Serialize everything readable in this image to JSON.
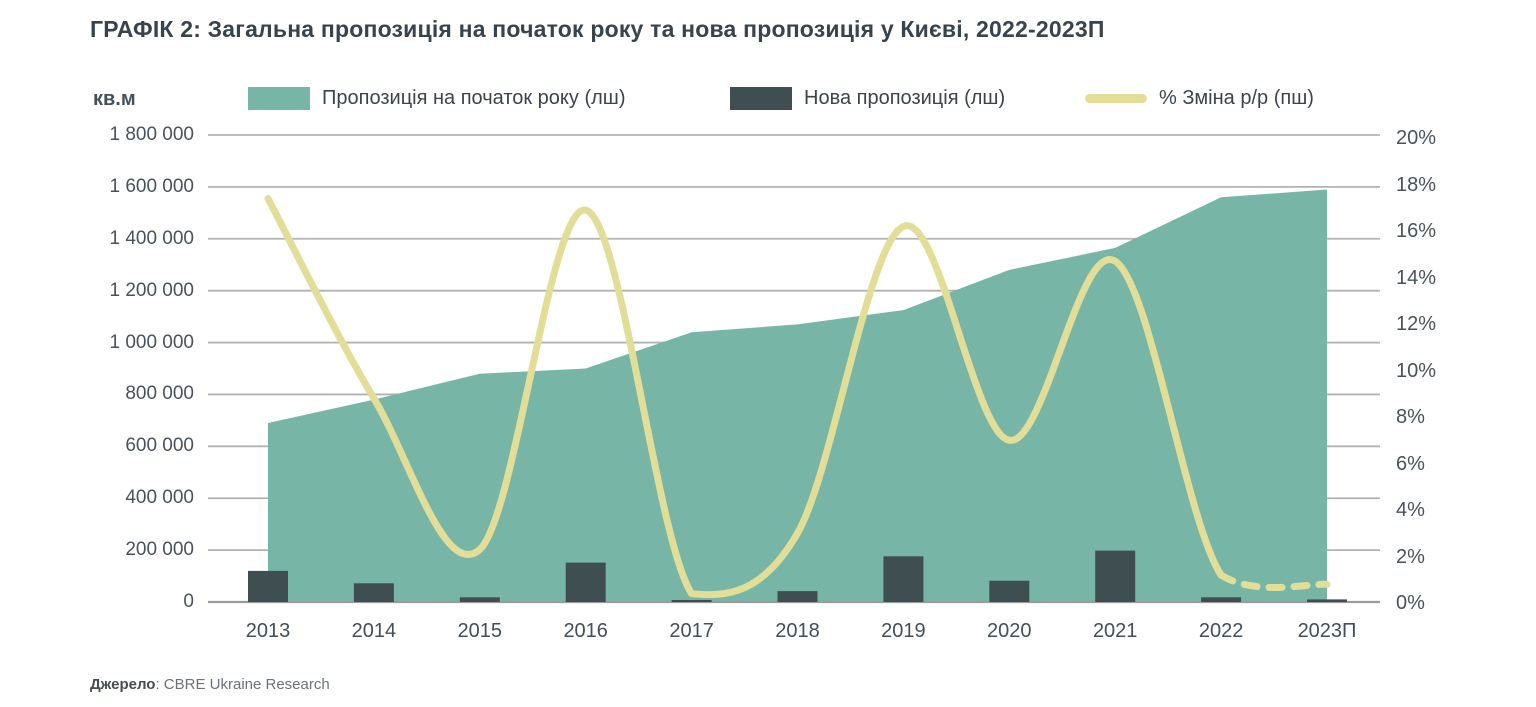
{
  "chart_data": {
    "type": "combo",
    "title": "ГРАФІК 2: Загальна пропозиція на початок року та нова пропозиція у Києві, 2022-2023П",
    "unit_label": "кв.м",
    "categories": [
      "2013",
      "2014",
      "2015",
      "2016",
      "2017",
      "2018",
      "2019",
      "2020",
      "2021",
      "2022",
      "2023П"
    ],
    "series": [
      {
        "name": "Пропозиція на початок року (лш)",
        "type": "area",
        "axis": "left",
        "values": [
          690000,
          780000,
          880000,
          900000,
          1040000,
          1070000,
          1125000,
          1280000,
          1365000,
          1560000,
          1590000
        ]
      },
      {
        "name": "Нова пропозиція (лш)",
        "type": "bar",
        "axis": "left",
        "values": [
          120000,
          72000,
          18000,
          152000,
          6000,
          42000,
          176000,
          82000,
          198000,
          18000,
          10000
        ]
      },
      {
        "name": "% Зміна р/р (пш)",
        "type": "line",
        "axis": "right",
        "dashed_from_index": 9,
        "values": [
          17.4,
          8.8,
          2.3,
          16.9,
          0.4,
          3.0,
          16.2,
          7.0,
          14.7,
          1.2,
          0.8
        ]
      }
    ],
    "left_axis": {
      "min": 0,
      "max": 1800000,
      "tick_step": 200000,
      "tick_labels": [
        "0",
        "200 000",
        "400 000",
        "600 000",
        "800 000",
        "1 000 000",
        "1 200 000",
        "1 400 000",
        "1 600 000",
        "1 800 000"
      ]
    },
    "right_axis": {
      "min": 0,
      "max": 20,
      "tick_step": 2,
      "tick_labels": [
        "0%",
        "2%",
        "4%",
        "6%",
        "8%",
        "10%",
        "12%",
        "14%",
        "16%",
        "18%",
        "20%"
      ]
    },
    "grid": true,
    "legend_position": "top",
    "source_label": "Джерело",
    "source_text": ": CBRE Ukraine Research"
  },
  "colors": {
    "area": "#77b6a7",
    "bar": "#3f4f51",
    "line": "#e2dd97",
    "grid": "#b2b2b2",
    "axis_line": "#9b9b9b",
    "text": "#434e57"
  }
}
